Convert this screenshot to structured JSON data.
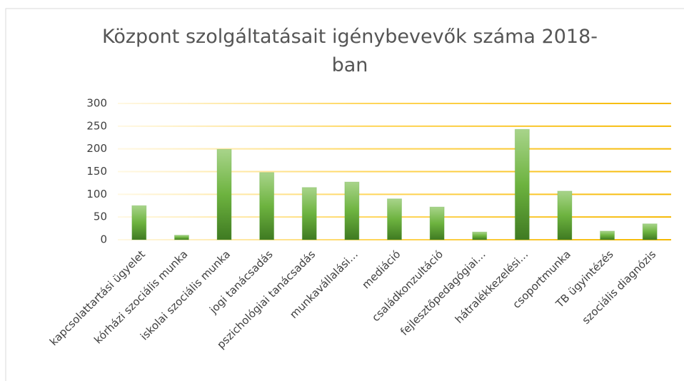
{
  "chart_data": {
    "type": "bar",
    "title": "Központ szolgáltatásait igénybevevők száma 2018-ban",
    "categories": [
      "kapcsolattartási ügyelet",
      "kórházi szociális munka",
      "iskolai szociális munka",
      "jogi tanácsadás",
      "pszichológiai tanácsadás",
      "munkavállalási…",
      "mediáció",
      "családkonzultáció",
      "fejlesztőpedagógiai…",
      "hátralékkezelési…",
      "csoportmunka",
      "TB ügyintézés",
      "szociális diagnózis"
    ],
    "values": [
      75,
      10,
      199,
      148,
      115,
      127,
      90,
      72,
      17,
      243,
      107,
      19,
      35
    ],
    "color": "#5fa83a",
    "ylim": [
      0,
      300
    ],
    "yticks": [
      0,
      50,
      100,
      150,
      200,
      250,
      300
    ],
    "grid": true
  }
}
